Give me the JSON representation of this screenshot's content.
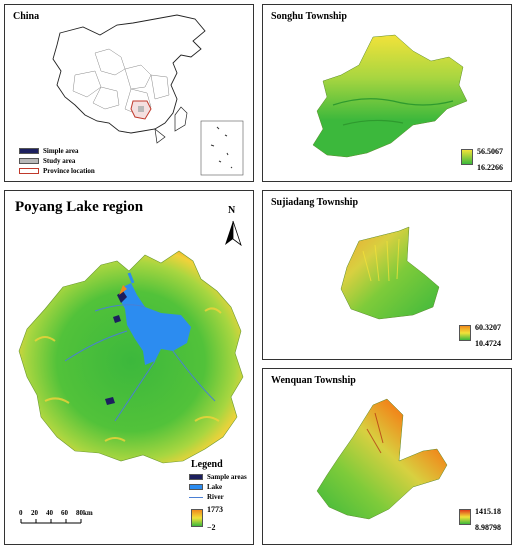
{
  "china": {
    "title": "China",
    "legend": [
      {
        "label": "Simple area",
        "color": "#1c1f5e"
      },
      {
        "label": "Study area",
        "color": "#b8b8b8"
      },
      {
        "label": "Province location",
        "color": "#ffffff",
        "border": "#c0392b"
      }
    ]
  },
  "poyang": {
    "title": "Poyang Lake region",
    "north": "N",
    "legend_title": "Legend",
    "legend": [
      {
        "label": "Sample areas",
        "color": "#1c1f5e"
      },
      {
        "label": "Lake",
        "color": "#2c8cf0"
      },
      {
        "label": "River",
        "color": "#4a7fd4"
      }
    ],
    "elev_max": "1773",
    "elev_min": "−2",
    "scale": {
      "ticks": [
        "0",
        "20",
        "40",
        "60",
        "80km"
      ]
    }
  },
  "songhu": {
    "title": "Songhu Township",
    "max": "56.5067",
    "min": "16.2266"
  },
  "sujiadang": {
    "title": "Sujiadang Township",
    "max": "60.3207",
    "min": "10.4724"
  },
  "wenquan": {
    "title": "Wenquan Township",
    "max": "1415.18",
    "min": "8.98798"
  },
  "colors": {
    "low": "#3cb83c",
    "mid": "#a8d640",
    "high_yellow": "#f2e23a",
    "high_orange": "#f08a1c",
    "high_red": "#e03a1a",
    "lake": "#2c8cf0"
  }
}
